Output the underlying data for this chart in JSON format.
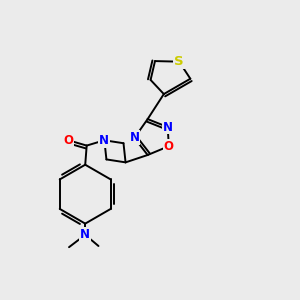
{
  "background_color": "#ebebeb",
  "bond_color": "#000000",
  "atom_colors": {
    "N": "#0000ff",
    "O": "#ff0000",
    "S": "#cccc00",
    "C": "#000000"
  },
  "font_size": 8.5,
  "fig_size": [
    3.0,
    3.0
  ],
  "dpi": 100,
  "lw": 1.4
}
